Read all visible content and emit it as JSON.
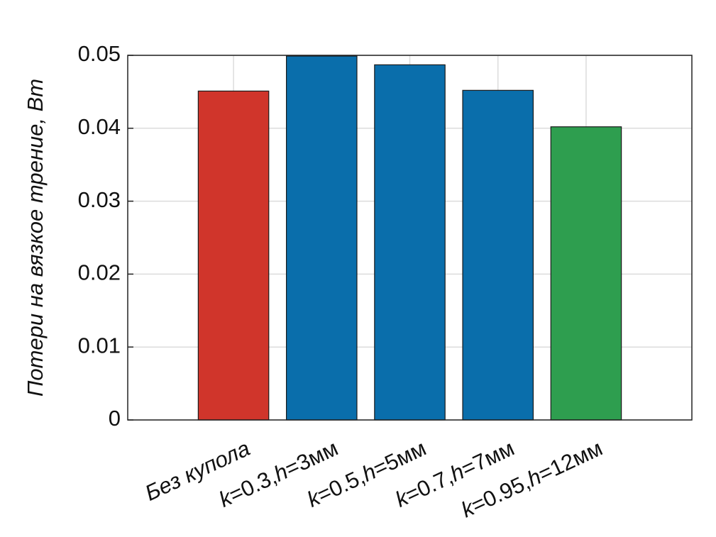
{
  "chart_data": {
    "type": "bar",
    "y_label": "Потери на вязкое трение, Вт",
    "categories": [
      "Без купола",
      "k=0.3,h=3мм",
      "k=0.5,h=5мм",
      "k=0.7,h=7мм",
      "k=0.95,h=12мм"
    ],
    "values": [
      0.0451,
      0.0499,
      0.0487,
      0.0452,
      0.0402
    ],
    "colors": [
      "#d0352b",
      "#0a6eab",
      "#0a6eab",
      "#0a6eab",
      "#2e9e4f"
    ],
    "ylim": [
      0,
      0.05
    ],
    "yticks": [
      0,
      0.01,
      0.02,
      0.03,
      0.04,
      0.05
    ],
    "grid": true
  }
}
